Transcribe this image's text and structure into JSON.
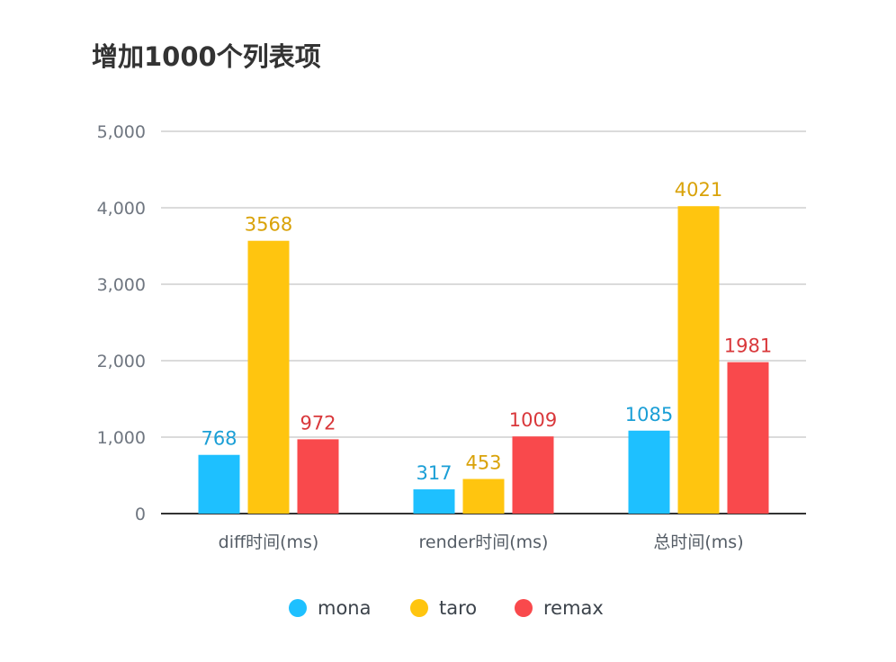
{
  "chart_data": {
    "type": "bar",
    "title": "增加1000个列表项",
    "categories": [
      "diff时间(ms)",
      "render时间(ms)",
      "总时间(ms)"
    ],
    "series": [
      {
        "name": "mona",
        "values": [
          768,
          317,
          1085
        ],
        "color": "#1ec0ff",
        "label_color": "#1b9fd6"
      },
      {
        "name": "taro",
        "values": [
          3568,
          453,
          4021
        ],
        "color": "#ffc50f",
        "label_color": "#d9a208"
      },
      {
        "name": "remax",
        "values": [
          972,
          1009,
          1981
        ],
        "color": "#f9494c",
        "label_color": "#d9383b"
      }
    ],
    "ylim": [
      0,
      5000
    ],
    "yticks": [
      0,
      1000,
      2000,
      3000,
      4000,
      5000
    ],
    "ytick_labels": [
      "0",
      "1,000",
      "2,000",
      "3,000",
      "4,000",
      "5,000"
    ],
    "grid": true,
    "legend_position": "bottom-center",
    "gridline_color": "#cfcfcf",
    "axis_color": "#333333"
  }
}
